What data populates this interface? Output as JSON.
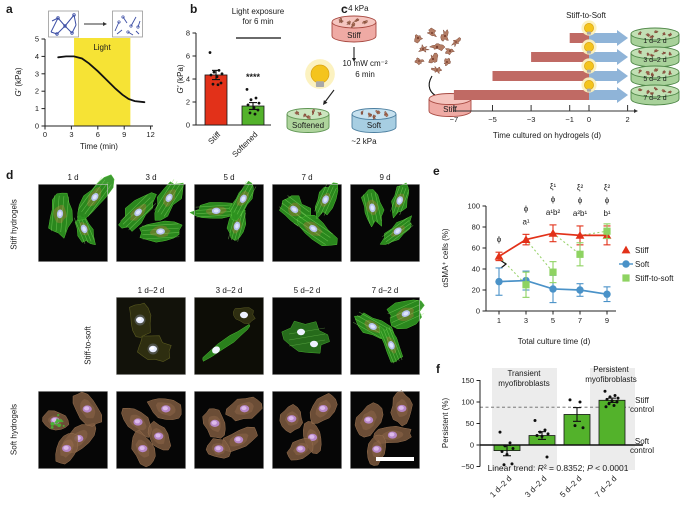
{
  "panels": {
    "a": {
      "letter": "a",
      "chart_data": {
        "type": "line",
        "ylabel_italic": "G′",
        "ylabel_unit": " (kPa)",
        "xlabel": "Time (min)",
        "xticks": [
          0,
          3,
          6,
          9,
          12
        ],
        "yticks": [
          0,
          1,
          2,
          3,
          4,
          5
        ],
        "xlim": [
          0,
          12
        ],
        "ylim": [
          0,
          5
        ],
        "light_region": {
          "label": "Light",
          "x_start": 3.3,
          "x_end": 9.7,
          "color": "#f6e335"
        },
        "curve": [
          [
            1.5,
            3.95
          ],
          [
            2.4,
            4.0
          ],
          [
            3.3,
            4.0
          ],
          [
            4.2,
            3.88
          ],
          [
            5,
            3.6
          ],
          [
            6,
            3.15
          ],
          [
            7,
            2.65
          ],
          [
            8,
            2.15
          ],
          [
            8.8,
            1.8
          ],
          [
            9.5,
            1.55
          ],
          [
            10.2,
            1.43
          ],
          [
            11.3,
            1.37
          ]
        ]
      }
    },
    "b": {
      "letter": "b",
      "title_line1": "Light exposure",
      "title_line2": "for 6 min",
      "chart_data": {
        "type": "bar",
        "ylabel_italic": "G′",
        "ylabel_unit": " (kPa)",
        "yticks": [
          0,
          2,
          4,
          6,
          8
        ],
        "ylim": [
          0,
          8
        ],
        "categories": [
          "Stiff",
          "Softened"
        ],
        "values": [
          4.35,
          1.65
        ],
        "errors": [
          0.4,
          0.3
        ],
        "bar_colors": [
          "#e23119",
          "#53b22b"
        ],
        "points": [
          [
            6.3,
            4.75,
            4.6,
            4.45,
            4.35,
            4.2,
            3.65,
            3.55,
            3.5
          ],
          [
            3.1,
            2.35,
            2.2,
            1.9,
            1.75,
            1.5,
            1.3,
            1.05,
            0.95
          ]
        ],
        "significance": "****"
      }
    },
    "c": {
      "letter": "c",
      "stiff_kpa": "~4 kPa",
      "stiff_disk_label": "Stiff",
      "light_dose": "10 mW cm⁻²",
      "light_duration": "6 min",
      "softened_disk_label": "Softened",
      "soft_disk_label": "Soft",
      "soft_kpa": "~2 kPa",
      "seed_disk_label": "Stiff",
      "timeline": {
        "title": "Stiff-to-Soft",
        "xlabel": "Time cultured on hydrogels (d)",
        "tick_values": [
          -7,
          -5,
          -3,
          -1,
          0,
          2
        ],
        "tick_labels": [
          "−7",
          "−5",
          "−3",
          "−1",
          "0",
          "2"
        ],
        "stiff_bar_color": "#c06a64",
        "soft_arrow_color": "#8fb4d8",
        "rows": [
          {
            "stiff_start": -1,
            "light_at": 0,
            "soft_end": 2,
            "label": "1 d–2 d"
          },
          {
            "stiff_start": -3,
            "light_at": 0,
            "soft_end": 2,
            "label": "3 d–2 d"
          },
          {
            "stiff_start": -5,
            "light_at": 0,
            "soft_end": 2,
            "label": "5 d–2 d"
          },
          {
            "stiff_start": -7,
            "light_at": 0,
            "soft_end": 2,
            "label": "7 d–2 d"
          }
        ]
      }
    },
    "d": {
      "letter": "d",
      "rows": [
        {
          "row_label": "Stiff hydrogels",
          "labels": [
            "1 d",
            "3 d",
            "5 d",
            "7 d",
            "9 d"
          ],
          "styles": [
            "green",
            "green",
            "green",
            "green",
            "green"
          ]
        },
        {
          "row_label": "Stiff-to-soft",
          "labels": [
            "1 d–2 d",
            "3 d–2 d",
            "5 d–2 d",
            "7 d–2 d"
          ],
          "styles": [
            "dim",
            "spindle",
            "dimspread",
            "green"
          ]
        },
        {
          "row_label": "Soft hydrogels",
          "labels": [],
          "styles": [
            "soft",
            "soft",
            "soft",
            "soft",
            "soft"
          ]
        }
      ]
    },
    "e": {
      "letter": "e",
      "chart_data": {
        "type": "line",
        "ylabel": "αSMA⁺ cells (%)",
        "xlabel": "Total culture time (d)",
        "xticks": [
          1,
          3,
          5,
          7,
          9
        ],
        "yticks": [
          0,
          20,
          40,
          60,
          80,
          100
        ],
        "ylim": [
          0,
          100
        ],
        "series": [
          {
            "name": "Stiff",
            "marker": "triangle",
            "color": "#e23119",
            "x": [
              1,
              3,
              5,
              7,
              9
            ],
            "y": [
              52,
              68,
              74,
              72,
              72
            ],
            "err": [
              4,
              5,
              8,
              9,
              9
            ]
          },
          {
            "name": "Soft",
            "marker": "circle",
            "color": "#4a92c8",
            "x": [
              1,
              3,
              5,
              7,
              9
            ],
            "y": [
              28,
              29,
              21,
              20,
              16
            ],
            "err": [
              13,
              9,
              13,
              6,
              7
            ]
          },
          {
            "name": "Stiff-to-soft",
            "marker": "square",
            "color": "#8ed362",
            "x": [
              3,
              5,
              7,
              9
            ],
            "y": [
              25,
              37,
              54,
              76
            ],
            "err": [
              12,
              10,
              11,
              7
            ]
          }
        ],
        "dashed_links": [
          [
            1,
            52,
            3,
            25
          ],
          [
            3,
            68,
            5,
            37
          ],
          [
            5,
            74,
            7,
            54
          ],
          [
            7,
            72,
            9,
            76
          ]
        ],
        "annotations": [
          {
            "x": 1,
            "lines": [
              "ϕ"
            ]
          },
          {
            "x": 3,
            "lines": [
              "ϕ",
              "a¹"
            ]
          },
          {
            "x": 5,
            "lines": [
              "ξ¹",
              "ϕ",
              "a¹b²"
            ]
          },
          {
            "x": 7,
            "lines": [
              "ξ²",
              "ϕ",
              "a²b¹"
            ]
          },
          {
            "x": 9,
            "lines": [
              "ξ²",
              "ϕ",
              "b¹"
            ]
          }
        ]
      }
    },
    "f": {
      "letter": "f",
      "chart_data": {
        "type": "bar",
        "ylabel": "Persistent (%)",
        "yticks": [
          -50,
          0,
          50,
          100,
          150
        ],
        "ylim": [
          -50,
          150
        ],
        "categories": [
          "1 d–2 d",
          "3 d–2 d",
          "5 d–2 d",
          "7 d–2 d"
        ],
        "values": [
          -13,
          22,
          71,
          104
        ],
        "errors": [
          12,
          9,
          16,
          5
        ],
        "bar_color": "#53b22b",
        "points": [
          [
            30,
            5,
            -2,
            -8,
            -15,
            -22,
            -44,
            -46
          ],
          [
            57,
            35,
            30,
            26,
            22,
            20,
            -28
          ],
          [
            105,
            100,
            45,
            40
          ],
          [
            125,
            115,
            112,
            109,
            106,
            103,
            100,
            96,
            92,
            89
          ]
        ],
        "stiff_control_level": 88,
        "soft_control_level": 0,
        "group_labels": {
          "transient_line1": "Transient",
          "transient_line2": "myofibroblasts",
          "persistent_line1": "Persistent",
          "persistent_line2": "myofibroblasts"
        },
        "control_labels": {
          "stiff_line1": "Stiff",
          "stiff_line2": "control",
          "soft_line1": "Soft",
          "soft_line2": "control"
        },
        "trend": {
          "prefix": "Linear trend: ",
          "r": "R",
          "mid": "² = 0.8352; ",
          "p": "P",
          "suffix": " < 0.0001"
        }
      }
    }
  },
  "colors": {
    "stiff_red": "#e23119",
    "softened_green": "#53b22b",
    "stiff_to_soft_green": "#8ed362",
    "soft_blue": "#4a92c8",
    "light_yellow": "#f6e335",
    "timeline_stiff": "#c06a64",
    "timeline_soft": "#8fb4d8",
    "bulb_yellow": "#f4c41d"
  }
}
